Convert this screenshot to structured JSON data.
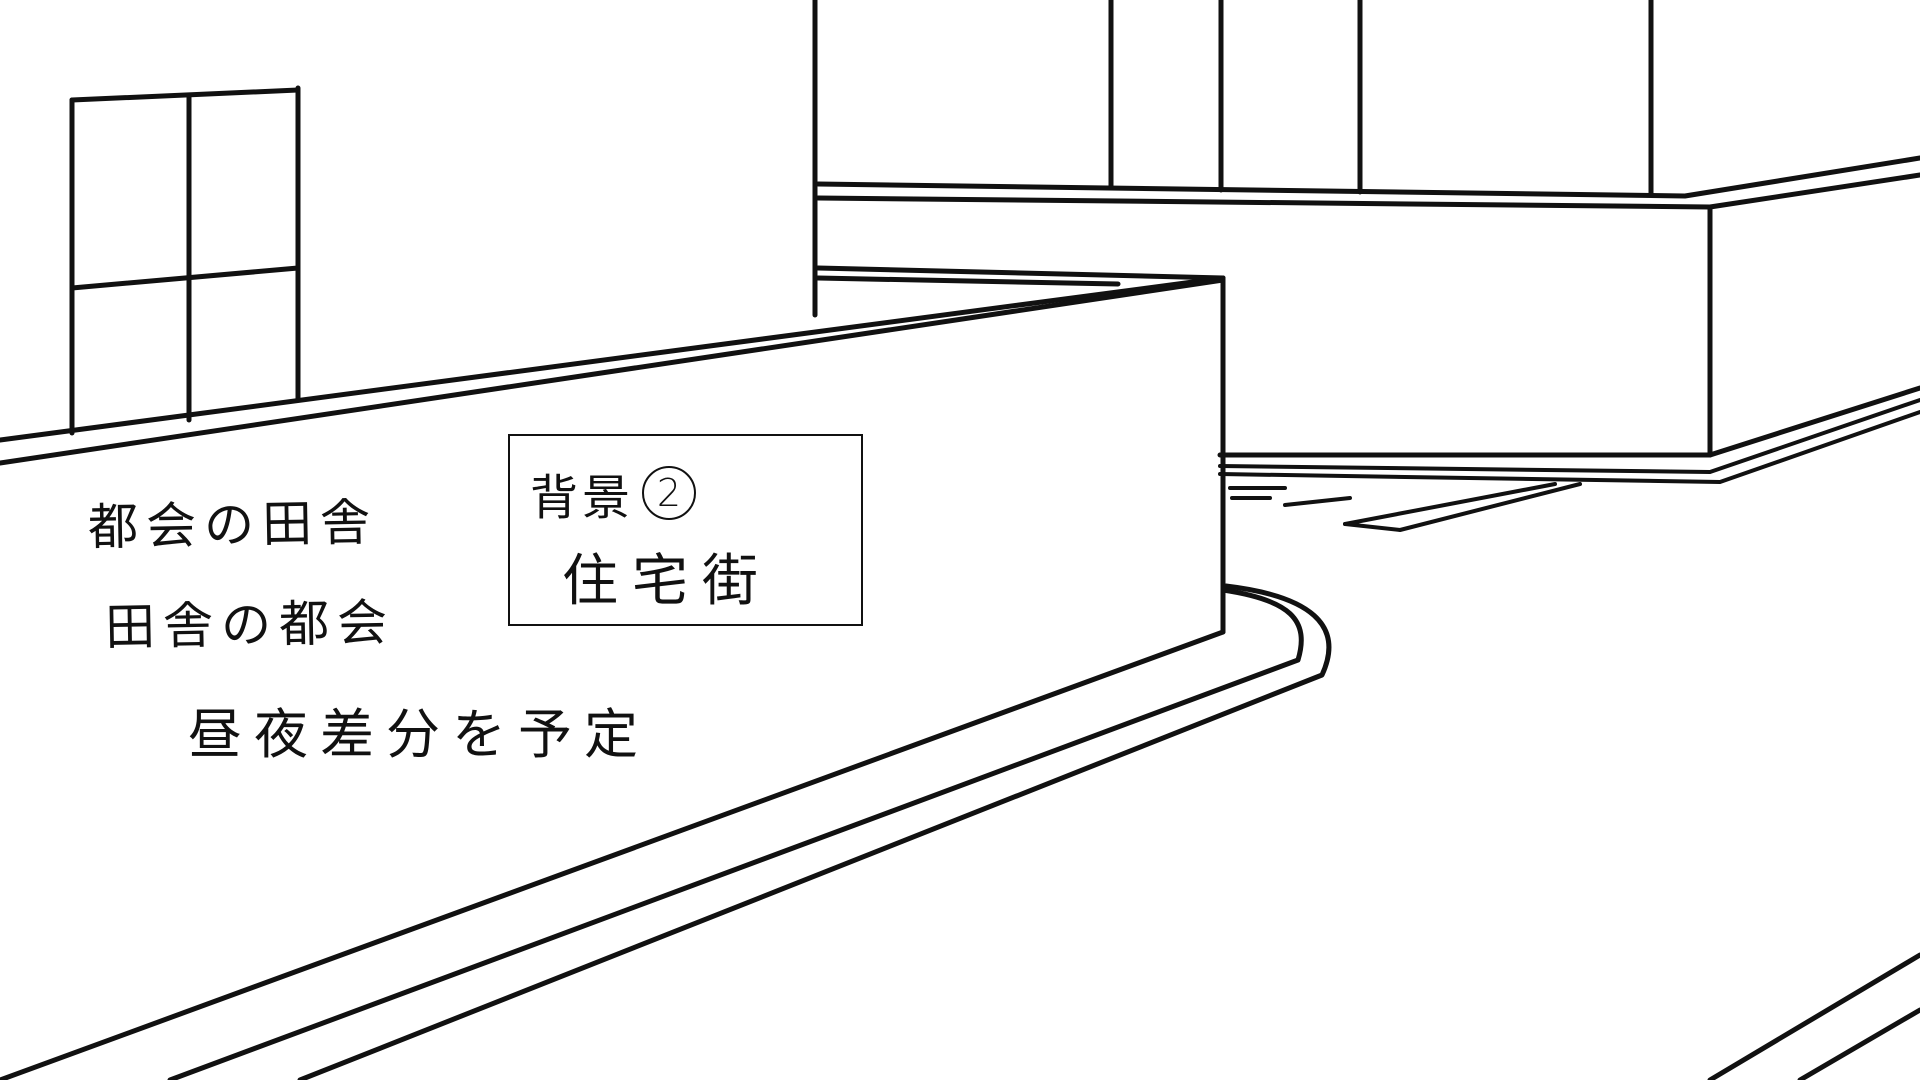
{
  "notes": {
    "line1": "都会の田舎",
    "line2": "田舎の都会",
    "line3": "昼夜差分を予定"
  },
  "sign": {
    "title": "背景",
    "number": "2",
    "subtitle": "住宅街"
  },
  "colors": {
    "ink": "#111111",
    "paper": "#ffffff"
  }
}
